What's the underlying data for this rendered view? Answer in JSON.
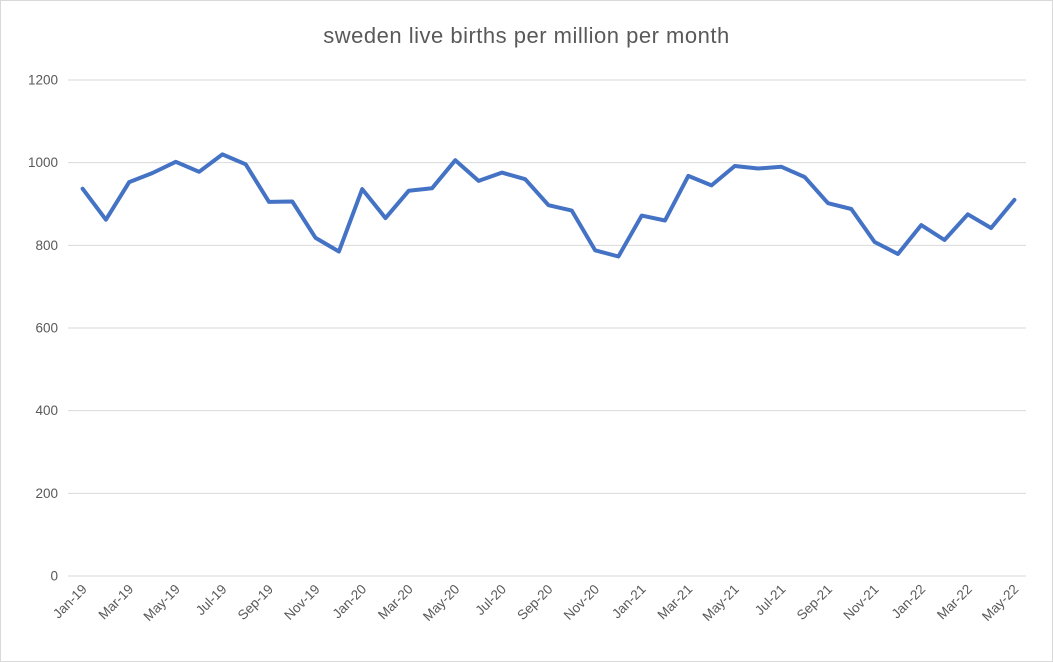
{
  "chart_data": {
    "type": "line",
    "title": "sweden live births per million per month",
    "x": [
      "Jan-19",
      "Feb-19",
      "Mar-19",
      "Apr-19",
      "May-19",
      "Jun-19",
      "Jul-19",
      "Aug-19",
      "Sep-19",
      "Oct-19",
      "Nov-19",
      "Dec-19",
      "Jan-20",
      "Feb-20",
      "Mar-20",
      "Apr-20",
      "May-20",
      "Jun-20",
      "Jul-20",
      "Aug-20",
      "Sep-20",
      "Oct-20",
      "Nov-20",
      "Dec-20",
      "Jan-21",
      "Feb-21",
      "Mar-21",
      "Apr-21",
      "May-21",
      "Jun-21",
      "Jul-21",
      "Aug-21",
      "Sep-21",
      "Oct-21",
      "Nov-21",
      "Dec-21",
      "Jan-22",
      "Feb-22",
      "Mar-22",
      "Apr-22",
      "May-22"
    ],
    "values": [
      937,
      862,
      953,
      975,
      1002,
      978,
      1020,
      996,
      905,
      906,
      818,
      785,
      936,
      866,
      932,
      938,
      1006,
      956,
      976,
      960,
      897,
      884,
      788,
      773,
      872,
      860,
      968,
      945,
      992,
      986,
      990,
      965,
      902,
      888,
      808,
      779,
      849,
      813,
      875,
      842,
      910
    ],
    "xtick_labels": [
      "Jan-19",
      "Mar-19",
      "May-19",
      "Jul-19",
      "Sep-19",
      "Nov-19",
      "Jan-20",
      "Mar-20",
      "May-20",
      "Jul-20",
      "Sep-20",
      "Nov-20",
      "Jan-21",
      "Mar-21",
      "May-21",
      "Jul-21",
      "Sep-21",
      "Nov-21",
      "Jan-22",
      "Mar-22",
      "May-22"
    ],
    "xtick_step": 2,
    "yticks": [
      0,
      200,
      400,
      600,
      800,
      1000,
      1200
    ],
    "ylim": [
      0,
      1200
    ],
    "grid": "horizontal",
    "legend": "none",
    "line_color": "#4472C4",
    "gridline_color": "#d9d9d9",
    "text_color": "#595959",
    "title_color": "#595959"
  }
}
